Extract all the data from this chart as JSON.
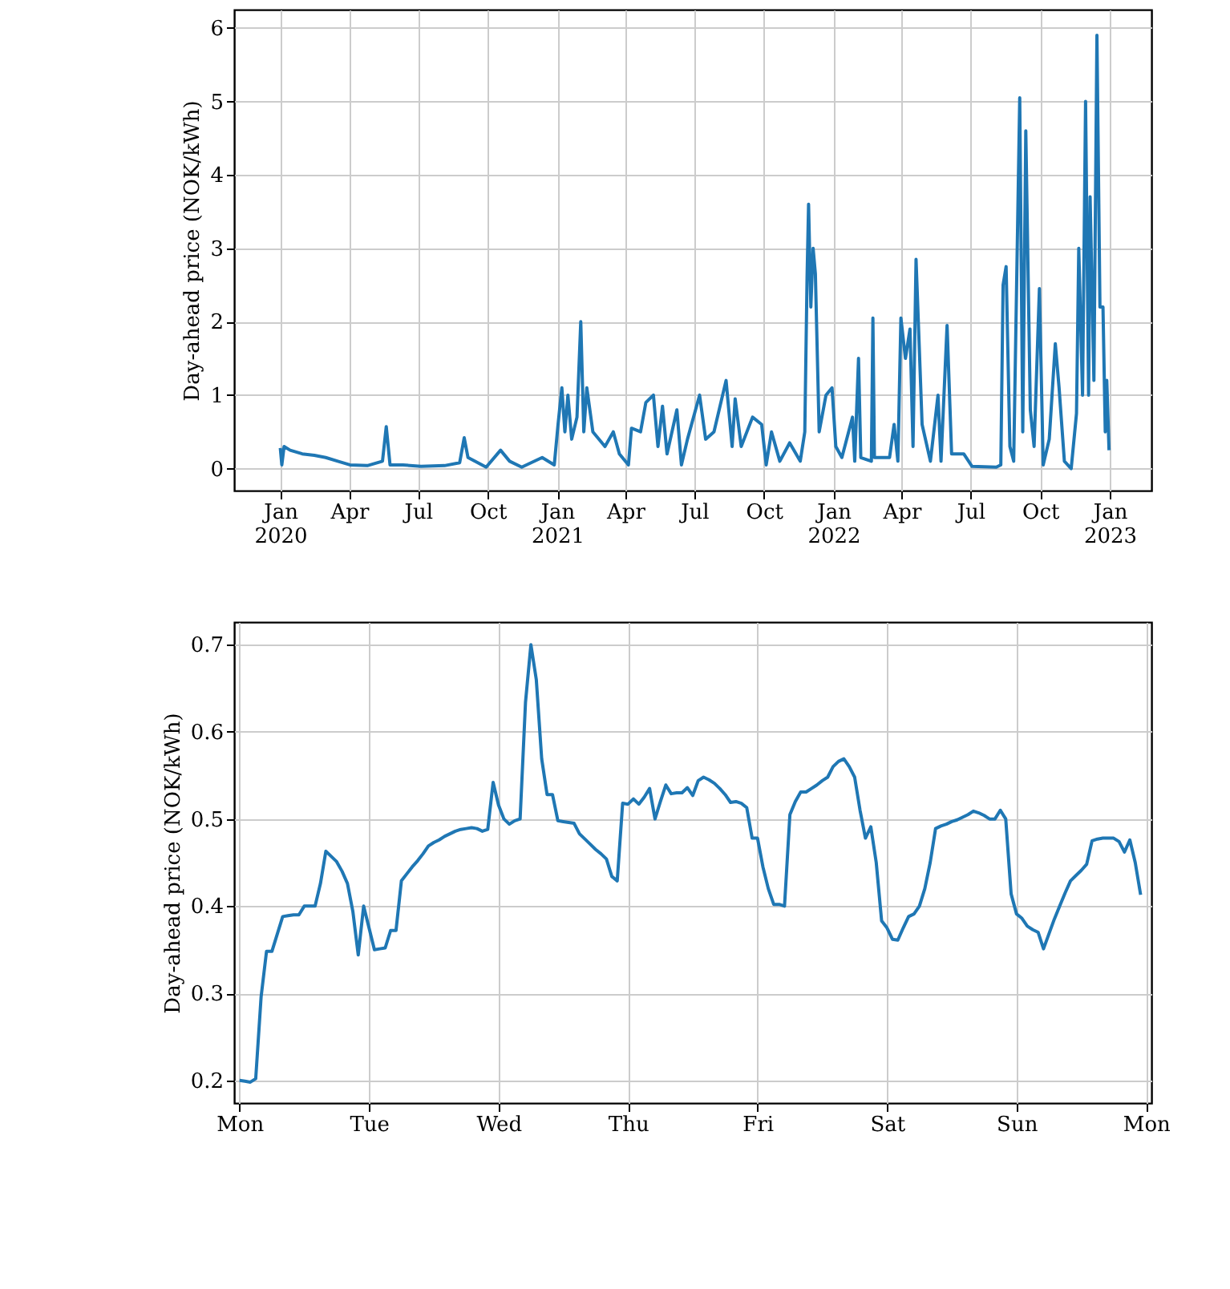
{
  "chart_data": [
    {
      "type": "line",
      "ylabel": "Day-ahead price (NOK/kWh)",
      "color": "#1f77b4",
      "grid": true,
      "x": [
        "2020-01-01",
        "2020-01-03",
        "2020-01-06",
        "2020-01-14",
        "2020-01-30",
        "2020-02-15",
        "2020-03-01",
        "2020-03-17",
        "2020-04-02",
        "2020-04-25",
        "2020-05-15",
        "2020-05-20",
        "2020-05-25",
        "2020-06-11",
        "2020-07-05",
        "2020-08-05",
        "2020-08-25",
        "2020-08-31",
        "2020-09-05",
        "2020-09-29",
        "2020-10-18",
        "2020-10-30",
        "2020-11-15",
        "2020-12-12",
        "2020-12-28",
        "2021-01-02",
        "2021-01-07",
        "2021-01-11",
        "2021-01-15",
        "2021-01-20",
        "2021-01-27",
        "2021-02-01",
        "2021-02-05",
        "2021-02-09",
        "2021-02-17",
        "2021-03-05",
        "2021-03-16",
        "2021-03-24",
        "2021-04-05",
        "2021-04-09",
        "2021-04-21",
        "2021-04-28",
        "2021-05-08",
        "2021-05-14",
        "2021-05-20",
        "2021-05-26",
        "2021-06-08",
        "2021-06-14",
        "2021-06-22",
        "2021-07-08",
        "2021-07-16",
        "2021-07-27",
        "2021-08-12",
        "2021-08-20",
        "2021-08-24",
        "2021-09-01",
        "2021-09-16",
        "2021-09-28",
        "2021-10-04",
        "2021-10-11",
        "2021-10-22",
        "2021-11-04",
        "2021-11-18",
        "2021-11-24",
        "2021-11-27",
        "2021-11-29",
        "2021-12-02",
        "2021-12-05",
        "2021-12-08",
        "2021-12-13",
        "2021-12-22",
        "2021-12-30",
        "2022-01-04",
        "2022-01-12",
        "2022-01-26",
        "2022-01-29",
        "2022-02-03",
        "2022-02-06",
        "2022-02-20",
        "2022-02-22",
        "2022-02-24",
        "2022-03-16",
        "2022-03-22",
        "2022-03-27",
        "2022-03-31",
        "2022-04-06",
        "2022-04-12",
        "2022-04-16",
        "2022-04-20",
        "2022-04-28",
        "2022-05-09",
        "2022-05-19",
        "2022-05-23",
        "2022-05-31",
        "2022-06-06",
        "2022-06-22",
        "2022-07-03",
        "2022-08-04",
        "2022-08-10",
        "2022-08-13",
        "2022-08-17",
        "2022-08-22",
        "2022-08-27",
        "2022-09-04",
        "2022-09-08",
        "2022-09-12",
        "2022-09-18",
        "2022-09-23",
        "2022-09-30",
        "2022-10-05",
        "2022-10-13",
        "2022-10-21",
        "2022-10-26",
        "2022-11-02",
        "2022-11-11",
        "2022-11-18",
        "2022-11-21",
        "2022-11-26",
        "2022-11-30",
        "2022-12-04",
        "2022-12-06",
        "2022-12-11",
        "2022-12-15",
        "2022-12-19",
        "2022-12-23",
        "2022-12-26",
        "2022-12-28",
        "2022-12-31"
      ],
      "values": [
        0.28,
        0.05,
        0.3,
        0.25,
        0.2,
        0.18,
        0.15,
        0.1,
        0.05,
        0.04,
        0.1,
        0.57,
        0.05,
        0.05,
        0.03,
        0.04,
        0.08,
        0.42,
        0.15,
        0.02,
        0.25,
        0.1,
        0.02,
        0.15,
        0.05,
        0.6,
        1.1,
        0.5,
        1.0,
        0.4,
        0.7,
        2.0,
        0.5,
        1.1,
        0.5,
        0.3,
        0.5,
        0.2,
        0.05,
        0.55,
        0.5,
        0.9,
        1.0,
        0.3,
        0.85,
        0.2,
        0.8,
        0.05,
        0.4,
        1.0,
        0.4,
        0.5,
        1.2,
        0.3,
        0.95,
        0.3,
        0.7,
        0.6,
        0.05,
        0.5,
        0.1,
        0.35,
        0.1,
        0.5,
        2.6,
        3.6,
        2.2,
        3.0,
        2.65,
        0.5,
        1.0,
        1.1,
        0.3,
        0.15,
        0.7,
        0.1,
        1.5,
        0.15,
        0.1,
        2.05,
        0.15,
        0.15,
        0.6,
        0.1,
        2.05,
        1.5,
        1.9,
        0.3,
        2.85,
        0.6,
        0.1,
        1.0,
        0.1,
        1.95,
        0.2,
        0.2,
        0.03,
        0.02,
        0.05,
        2.5,
        2.75,
        0.3,
        0.1,
        5.05,
        0.5,
        4.6,
        0.8,
        0.3,
        2.45,
        0.05,
        0.4,
        1.7,
        1.1,
        0.1,
        0.0,
        0.75,
        3.0,
        1.0,
        5.0,
        1.0,
        3.7,
        1.2,
        5.9,
        2.2,
        2.2,
        0.5,
        1.2,
        0.25
      ],
      "xlim": [
        "2019-11-01",
        "2023-02-25"
      ],
      "xticks": [
        {
          "value": "2020-01",
          "label": "Jan\n2020"
        },
        {
          "value": "2020-04",
          "label": "Apr"
        },
        {
          "value": "2020-07",
          "label": "Jul"
        },
        {
          "value": "2020-10",
          "label": "Oct"
        },
        {
          "value": "2021-01",
          "label": "Jan\n2021"
        },
        {
          "value": "2021-04",
          "label": "Apr"
        },
        {
          "value": "2021-07",
          "label": "Jul"
        },
        {
          "value": "2021-10",
          "label": "Oct"
        },
        {
          "value": "2022-01",
          "label": "Jan\n2022"
        },
        {
          "value": "2022-04",
          "label": "Apr"
        },
        {
          "value": "2022-07",
          "label": "Jul"
        },
        {
          "value": "2022-10",
          "label": "Oct"
        },
        {
          "value": "2023-01",
          "label": "Jan\n2023"
        }
      ],
      "ylim": [
        -0.3,
        6.25
      ],
      "yticks": [
        0,
        1,
        2,
        3,
        4,
        5,
        6
      ]
    },
    {
      "type": "line",
      "ylabel": "Day-ahead price (NOK/kWh)",
      "color": "#1f77b4",
      "grid": true,
      "categories": [
        "Mon",
        null,
        null,
        null,
        null,
        null,
        null,
        null,
        null,
        null,
        null,
        null,
        null,
        null,
        null,
        null,
        null,
        null,
        null,
        null,
        null,
        null,
        null,
        null,
        "Tue",
        null,
        null,
        null,
        null,
        null,
        null,
        null,
        null,
        null,
        null,
        null,
        null,
        null,
        null,
        null,
        null,
        null,
        null,
        null,
        null,
        null,
        null,
        null,
        "Wed",
        null,
        null,
        null,
        null,
        null,
        null,
        null,
        null,
        null,
        null,
        null,
        null,
        null,
        null,
        null,
        null,
        null,
        null,
        null,
        null,
        null,
        null,
        null,
        "Thu",
        null,
        null,
        null,
        null,
        null,
        null,
        null,
        null,
        null,
        null,
        null,
        null,
        null,
        null,
        null,
        null,
        null,
        null,
        null,
        null,
        null,
        null,
        null,
        "Fri",
        null,
        null,
        null,
        null,
        null,
        null,
        null,
        null,
        null,
        null,
        null,
        null,
        null,
        null,
        null,
        null,
        null,
        null,
        null,
        null,
        null,
        null,
        null,
        "Sat",
        null,
        null,
        null,
        null,
        null,
        null,
        null,
        null,
        null,
        null,
        null,
        null,
        null,
        null,
        null,
        null,
        null,
        null,
        null,
        null,
        null,
        null,
        null,
        "Sun",
        null,
        null,
        null,
        null,
        null,
        null,
        null,
        null,
        null,
        null,
        null,
        null,
        null,
        null,
        null,
        null,
        null,
        null,
        null,
        null,
        null,
        null,
        null,
        "Mon"
      ],
      "values": [
        0.2,
        0.199,
        0.198,
        0.202,
        0.296,
        0.348,
        0.348,
        0.368,
        0.388,
        0.389,
        0.39,
        0.39,
        0.4,
        0.4,
        0.4,
        0.426,
        0.463,
        0.457,
        0.451,
        0.44,
        0.426,
        0.394,
        0.344,
        0.4,
        0.375,
        0.35,
        0.351,
        0.352,
        0.372,
        0.372,
        0.429,
        0.437,
        0.445,
        0.452,
        0.46,
        0.469,
        0.473,
        0.476,
        0.48,
        0.483,
        0.486,
        0.488,
        0.489,
        0.49,
        0.489,
        0.486,
        0.488,
        0.542,
        0.516,
        0.5,
        0.494,
        0.498,
        0.5,
        0.634,
        0.7,
        0.66,
        0.569,
        0.528,
        0.528,
        0.498,
        0.497,
        0.496,
        0.495,
        0.483,
        0.477,
        0.471,
        0.465,
        0.46,
        0.454,
        0.434,
        0.429,
        0.518,
        0.517,
        0.523,
        0.517,
        0.525,
        0.535,
        0.5,
        0.52,
        0.539,
        0.529,
        0.53,
        0.53,
        0.536,
        0.527,
        0.544,
        0.548,
        0.545,
        0.541,
        0.535,
        0.528,
        0.519,
        0.52,
        0.518,
        0.513,
        0.478,
        0.478,
        0.445,
        0.42,
        0.402,
        0.402,
        0.4,
        0.505,
        0.52,
        0.531,
        0.531,
        0.535,
        0.539,
        0.544,
        0.548,
        0.56,
        0.566,
        0.569,
        0.56,
        0.548,
        0.51,
        0.478,
        0.491,
        0.45,
        0.383,
        0.375,
        0.362,
        0.361,
        0.375,
        0.388,
        0.391,
        0.4,
        0.42,
        0.45,
        0.489,
        0.492,
        0.494,
        0.497,
        0.499,
        0.502,
        0.505,
        0.509,
        0.507,
        0.504,
        0.5,
        0.5,
        0.51,
        0.5,
        0.414,
        0.391,
        0.386,
        0.377,
        0.373,
        0.37,
        0.351,
        0.368,
        0.385,
        0.4,
        0.415,
        0.429,
        0.435,
        0.441,
        0.448,
        0.475,
        0.477,
        0.478,
        0.478,
        0.478,
        0.474,
        0.462,
        0.476,
        0.45,
        0.413,
        null
      ],
      "ylim": [
        0.174,
        0.726
      ],
      "yticks": [
        0.2,
        0.3,
        0.4,
        0.5,
        0.6,
        0.7
      ]
    }
  ]
}
